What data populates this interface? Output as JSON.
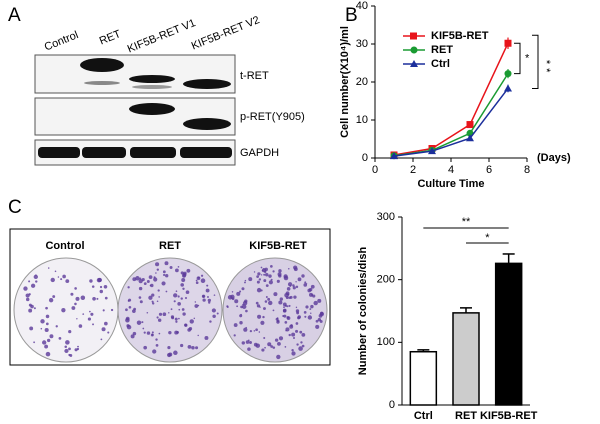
{
  "panel_labels": [
    "A",
    "B",
    "C"
  ],
  "blot": {
    "lanes": [
      "Control",
      "RET",
      "KIF5B-RET V1",
      "KIF5B-RET V2"
    ],
    "rows": [
      "t-RET",
      "p-RET(Y905)",
      "GAPDH"
    ]
  },
  "colony": {
    "labels": [
      "Control",
      "RET",
      "KIF5B-RET"
    ]
  },
  "chart_data": [
    {
      "type": "line",
      "xlabel": "Culture Time",
      "xunit": "(Days)",
      "ylabel": "Cell number(X10⁴)/ml",
      "x": [
        1,
        3,
        5,
        7
      ],
      "xlim": [
        0,
        8
      ],
      "xticks": [
        0,
        2,
        4,
        6,
        8
      ],
      "ylim": [
        0,
        40
      ],
      "yticks": [
        0,
        10,
        20,
        30,
        40
      ],
      "legend": "top-left",
      "series": [
        {
          "name": "KIF5B-RET",
          "color": "#e8141b",
          "marker": "square",
          "values": [
            0.8,
            2.5,
            8.8,
            30.2
          ],
          "errors": [
            0.2,
            0.3,
            0.6,
            1.5
          ]
        },
        {
          "name": "RET",
          "color": "#1a9b32",
          "marker": "circle",
          "values": [
            0.6,
            2.0,
            6.5,
            22.2
          ],
          "errors": [
            0.2,
            0.2,
            0.5,
            1.2
          ]
        },
        {
          "name": "Ctrl",
          "color": "#1c2f9c",
          "marker": "triangle",
          "values": [
            0.5,
            1.8,
            5.2,
            18.3
          ],
          "errors": [
            0.2,
            0.2,
            0.4,
            1.0
          ]
        }
      ],
      "annotations": [
        "*",
        "**"
      ]
    },
    {
      "type": "bar",
      "ylabel": "Number of colonies/dish",
      "categories": [
        "Ctrl",
        "RET",
        "KIF5B-RET"
      ],
      "values": [
        85,
        147,
        226
      ],
      "errors": [
        3,
        8,
        15
      ],
      "colors": [
        "#ffffff",
        "#cccccc",
        "#000000"
      ],
      "ylim": [
        0,
        300
      ],
      "yticks": [
        0,
        100,
        200,
        300
      ],
      "annotations": [
        "**",
        "*"
      ]
    }
  ]
}
